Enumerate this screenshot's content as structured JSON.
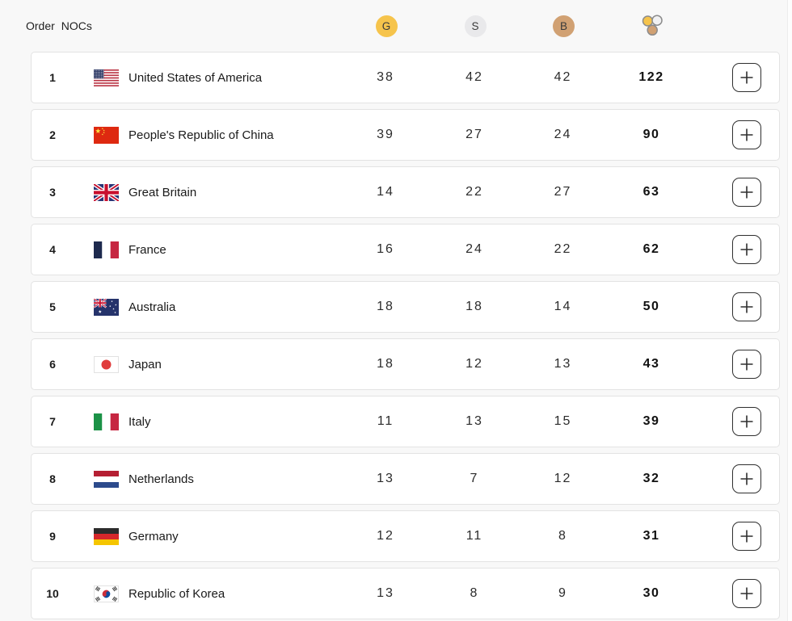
{
  "header": {
    "order_label": "Order",
    "nocs_label": "NOCs",
    "gold_label": "G",
    "silver_label": "S",
    "bronze_label": "B",
    "total_column_icon": "medals-total-icon",
    "expand_column_icon": "plus-icon"
  },
  "colors": {
    "gold_badge": "#F6C44C",
    "silver_badge": "#E9E9EB",
    "bronze_badge": "#D1A173",
    "medal_ring": "#8C8C8C",
    "page_background": "#F8F8F8",
    "card_background": "#FFFFFF",
    "card_border": "#E3E3E3"
  },
  "table": {
    "rows": [
      {
        "order": "1",
        "noc": "United States of America",
        "flag": "us",
        "gold": "38",
        "silver": "42",
        "bronze": "42",
        "total": "122"
      },
      {
        "order": "2",
        "noc": "People's Republic of China",
        "flag": "cn",
        "gold": "39",
        "silver": "27",
        "bronze": "24",
        "total": "90"
      },
      {
        "order": "3",
        "noc": "Great Britain",
        "flag": "gb",
        "gold": "14",
        "silver": "22",
        "bronze": "27",
        "total": "63"
      },
      {
        "order": "4",
        "noc": "France",
        "flag": "fr",
        "gold": "16",
        "silver": "24",
        "bronze": "22",
        "total": "62"
      },
      {
        "order": "5",
        "noc": "Australia",
        "flag": "au",
        "gold": "18",
        "silver": "18",
        "bronze": "14",
        "total": "50"
      },
      {
        "order": "6",
        "noc": "Japan",
        "flag": "jp",
        "gold": "18",
        "silver": "12",
        "bronze": "13",
        "total": "43"
      },
      {
        "order": "7",
        "noc": "Italy",
        "flag": "it",
        "gold": "11",
        "silver": "13",
        "bronze": "15",
        "total": "39"
      },
      {
        "order": "8",
        "noc": "Netherlands",
        "flag": "nl",
        "gold": "13",
        "silver": "7",
        "bronze": "12",
        "total": "32"
      },
      {
        "order": "9",
        "noc": "Germany",
        "flag": "de",
        "gold": "12",
        "silver": "11",
        "bronze": "8",
        "total": "31"
      },
      {
        "order": "10",
        "noc": "Republic of Korea",
        "flag": "kr",
        "gold": "13",
        "silver": "8",
        "bronze": "9",
        "total": "30"
      }
    ]
  }
}
